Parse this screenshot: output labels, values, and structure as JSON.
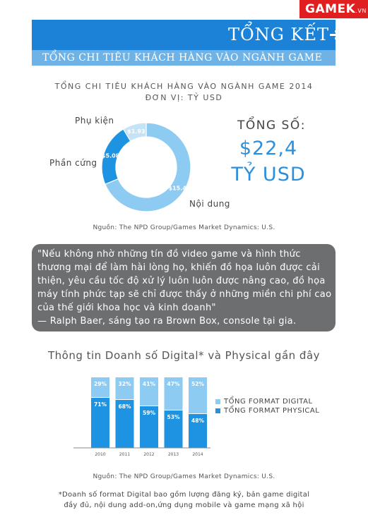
{
  "logo": {
    "text": "GAMEK",
    "suffix": ".VN"
  },
  "header": {
    "title": "TỔNG KẾT",
    "subtitle": "TỔNG CHI TIÊU KHÁCH HÀNG VÀO NGÀNH GAME"
  },
  "donut": {
    "title": "TỔNG CHI TIÊU KHÁCH HÀNG VÀO NGÀNH GAME 2014",
    "unit": "ĐƠN VỊ: TỶ USD",
    "total_label": "TỔNG SỐ:",
    "total_value": "$22,4",
    "total_unit": "TỶ USD",
    "source": "Nguồn: The NPD Group/Games Market Dynamics: U.S.",
    "colors": {
      "noi_dung": "#8ecbf2",
      "phan_cung": "#1e93e2",
      "phu_kien": "#c5e3f7"
    }
  },
  "quote": {
    "lines": [
      "\"Nếu không nhờ những tín đồ video game và hình thức",
      "thương mại để làm hài lòng họ, khiến đồ họa luôn được cải",
      "thiện, yêu cầu tốc độ xử lý luôn luôn được nâng cao, đồ họa",
      "máy tính phức tạp sẽ chỉ được thấy ở những miền chi phí cao",
      "của thế giới khoa học và kinh doanh\""
    ],
    "author": "— Ralph Baer, sáng tạo ra Brown Box, console tại gia."
  },
  "bars": {
    "title": "Thông tin Doanh số Digital* và Physical gần đây",
    "legend": [
      "TỔNG FORMAT DIGITAL",
      "TỔNG FORMAT PHYSICAL"
    ],
    "colors": {
      "digital": "#8ecbf2",
      "physical": "#1e93e2"
    },
    "source": "Nguồn: The NPD Group/Games Market Dynamics: U.S.",
    "footnote": [
      "*Doanh số format Digital bao gồm lượng đăng ký, bản game digital",
      "đầy đủ, nội dung add-on,ứng dụng mobile và game mạng xã hội"
    ]
  },
  "chart_data": [
    {
      "type": "pie",
      "title": "TỔNG CHI TIÊU KHÁCH HÀNG VÀO NGÀNH GAME 2014",
      "subtitle": "ĐƠN VỊ: TỶ USD",
      "categories": [
        "Nội dung",
        "Phần cứng",
        "Phụ kiện"
      ],
      "values": [
        15.4,
        5.08,
        1.93
      ],
      "value_labels": [
        "$15.4",
        "$5.08",
        "$1.93"
      ]
    },
    {
      "type": "bar",
      "stacked": true,
      "categories": [
        "2010",
        "2011",
        "2012",
        "2013",
        "2014"
      ],
      "series": [
        {
          "name": "TỔNG FORMAT PHYSICAL",
          "values": [
            71,
            68,
            59,
            53,
            48
          ]
        },
        {
          "name": "TỔNG FORMAT DIGITAL",
          "values": [
            29,
            32,
            41,
            47,
            52
          ]
        }
      ],
      "ylim": [
        0,
        100
      ],
      "value_suffix": "%"
    }
  ]
}
